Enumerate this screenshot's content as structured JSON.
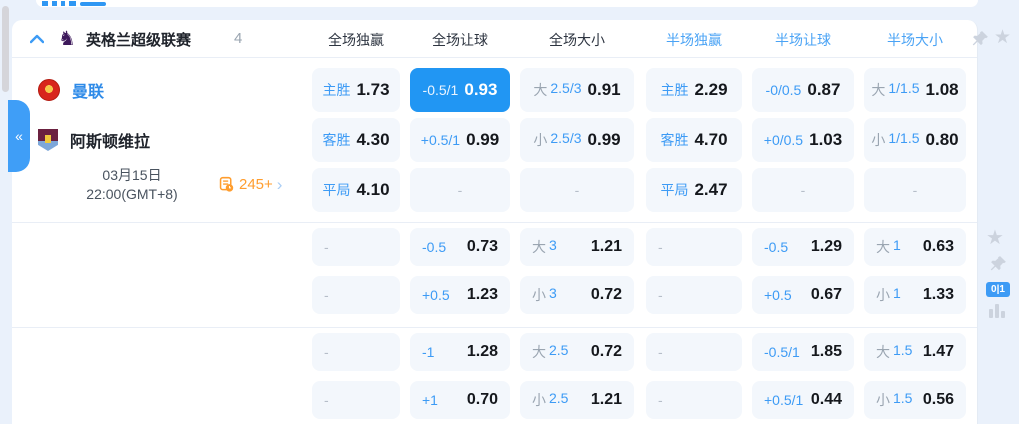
{
  "league_header": {
    "league_name": "英格兰超级联赛",
    "match_count": "4",
    "column_headers": [
      {
        "label": "全场独赢",
        "tone": "dark"
      },
      {
        "label": "全场让球",
        "tone": "dark"
      },
      {
        "label": "全场大小",
        "tone": "dark"
      },
      {
        "label": "半场独赢",
        "tone": "blue"
      },
      {
        "label": "半场让球",
        "tone": "blue"
      },
      {
        "label": "半场大小",
        "tone": "blue"
      }
    ]
  },
  "match": {
    "home_team": "曼联",
    "away_team": "阿斯顿维拉",
    "date": "03月15日",
    "time": "22:00(GMT+8)",
    "more_markets_count": "245+"
  },
  "icons": {
    "collapse_tab": "«",
    "star": "★",
    "markets_chevron": "›",
    "dash": "-"
  },
  "side_tools": {
    "corner_badge": "0|1"
  },
  "colors": {
    "highlight_blue": "#2196f3",
    "label_blue": "#3d9bf5",
    "half_header_blue": "#4aa3f5",
    "orange": "#ff9d2e",
    "league_purple": "#3d195b"
  },
  "odds_blocks": [
    {
      "rows": [
        {
          "cells": [
            {
              "type": "win",
              "label": "主胜",
              "odds": "1.73"
            },
            {
              "type": "hcp",
              "label": "-0.5/1",
              "odds": "0.93",
              "highlight": true
            },
            {
              "type": "ou",
              "side": "大",
              "line": "2.5/3",
              "odds": "0.91"
            },
            {
              "type": "win",
              "label": "主胜",
              "odds": "2.29"
            },
            {
              "type": "hcp",
              "label": "-0/0.5",
              "odds": "0.87"
            },
            {
              "type": "ou",
              "side": "大",
              "line": "1/1.5",
              "odds": "1.08"
            }
          ]
        },
        {
          "cells": [
            {
              "type": "win",
              "label": "客胜",
              "odds": "4.30"
            },
            {
              "type": "hcp",
              "label": "+0.5/1",
              "odds": "0.99"
            },
            {
              "type": "ou",
              "side": "小",
              "line": "2.5/3",
              "odds": "0.99"
            },
            {
              "type": "win",
              "label": "客胜",
              "odds": "4.70"
            },
            {
              "type": "hcp",
              "label": "+0/0.5",
              "odds": "1.03"
            },
            {
              "type": "ou",
              "side": "小",
              "line": "1/1.5",
              "odds": "0.80"
            }
          ]
        },
        {
          "cells": [
            {
              "type": "win",
              "label": "平局",
              "odds": "4.10"
            },
            {
              "type": "dash"
            },
            {
              "type": "dash"
            },
            {
              "type": "win",
              "label": "平局",
              "odds": "2.47"
            },
            {
              "type": "dash"
            },
            {
              "type": "dash"
            }
          ]
        }
      ]
    },
    {
      "rows": [
        {
          "cells": [
            {
              "type": "dash"
            },
            {
              "type": "hcp",
              "label": "-0.5",
              "odds": "0.73"
            },
            {
              "type": "ou",
              "side": "大",
              "line": "3",
              "odds": "1.21"
            },
            {
              "type": "dash"
            },
            {
              "type": "hcp",
              "label": "-0.5",
              "odds": "1.29"
            },
            {
              "type": "ou",
              "side": "大",
              "line": "1",
              "odds": "0.63"
            }
          ]
        },
        {
          "cells": [
            {
              "type": "dash"
            },
            {
              "type": "hcp",
              "label": "+0.5",
              "odds": "1.23"
            },
            {
              "type": "ou",
              "side": "小",
              "line": "3",
              "odds": "0.72"
            },
            {
              "type": "dash"
            },
            {
              "type": "hcp",
              "label": "+0.5",
              "odds": "0.67"
            },
            {
              "type": "ou",
              "side": "小",
              "line": "1",
              "odds": "1.33"
            }
          ]
        }
      ]
    },
    {
      "rows": [
        {
          "cells": [
            {
              "type": "dash"
            },
            {
              "type": "hcp",
              "label": "-1",
              "odds": "1.28"
            },
            {
              "type": "ou",
              "side": "大",
              "line": "2.5",
              "odds": "0.72"
            },
            {
              "type": "dash"
            },
            {
              "type": "hcp",
              "label": "-0.5/1",
              "odds": "1.85"
            },
            {
              "type": "ou",
              "side": "大",
              "line": "1.5",
              "odds": "1.47"
            }
          ]
        },
        {
          "cells": [
            {
              "type": "dash"
            },
            {
              "type": "hcp",
              "label": "+1",
              "odds": "0.70"
            },
            {
              "type": "ou",
              "side": "小",
              "line": "2.5",
              "odds": "1.21"
            },
            {
              "type": "dash"
            },
            {
              "type": "hcp",
              "label": "+0.5/1",
              "odds": "0.44"
            },
            {
              "type": "ou",
              "side": "小",
              "line": "1.5",
              "odds": "0.56"
            }
          ]
        }
      ]
    }
  ]
}
